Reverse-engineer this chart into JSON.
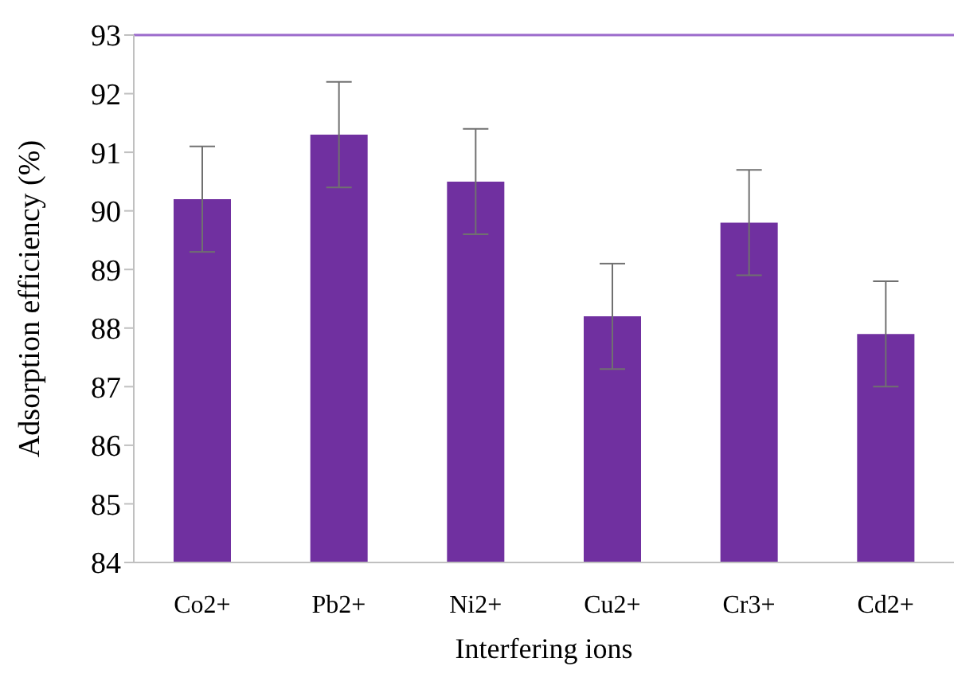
{
  "chart_data": {
    "type": "bar",
    "xlabel": "Interfering ions",
    "ylabel": "Adsorption efficiency (%)",
    "categories": [
      "Co2+",
      "Pb2+",
      "Ni2+",
      "Cu2+",
      "Cr3+",
      "Cd2+"
    ],
    "values": [
      90.2,
      91.3,
      90.5,
      88.2,
      89.8,
      87.9
    ],
    "errors": [
      0.9,
      0.9,
      0.9,
      0.9,
      0.9,
      0.9
    ],
    "color": "#7030a0",
    "ylim": [
      84,
      93
    ],
    "yticks": [
      84,
      85,
      86,
      87,
      88,
      89,
      90,
      91,
      92,
      93
    ],
    "ref_lines": [
      {
        "axis": "y",
        "value": 93,
        "color": "#9b6bcc"
      }
    ],
    "grid": false,
    "legend": false
  }
}
